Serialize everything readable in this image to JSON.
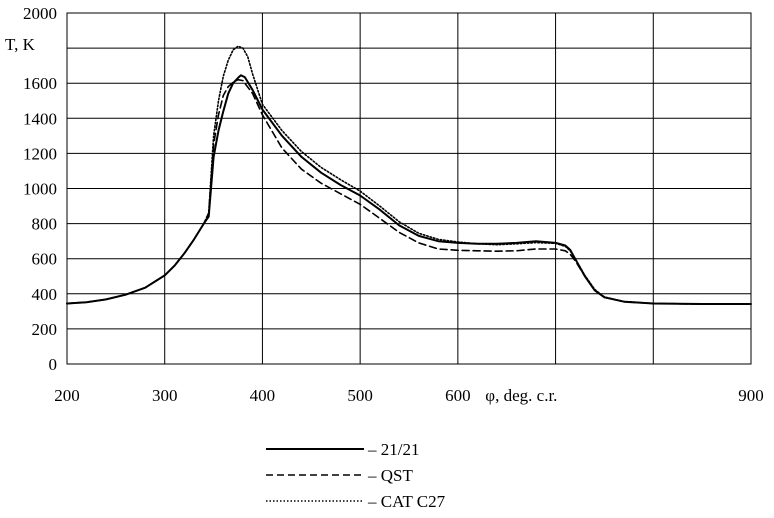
{
  "chart_data": {
    "type": "line",
    "xlabel": "φ, deg. c.r.",
    "ylabel": "T, K",
    "xlim": [
      200,
      900
    ],
    "ylim": [
      0,
      2000
    ],
    "x_ticks": [
      200,
      300,
      400,
      500,
      600,
      900
    ],
    "y_ticks": [
      0,
      200,
      400,
      600,
      800,
      1000,
      1200,
      1400,
      1600,
      2000
    ],
    "grid": true,
    "legend_position": "bottom",
    "series": [
      {
        "name": "– 21/21",
        "style": "solid",
        "points": [
          [
            200,
            345
          ],
          [
            220,
            352
          ],
          [
            240,
            368
          ],
          [
            260,
            395
          ],
          [
            280,
            435
          ],
          [
            300,
            505
          ],
          [
            310,
            560
          ],
          [
            320,
            630
          ],
          [
            330,
            710
          ],
          [
            340,
            800
          ],
          [
            345,
            840
          ],
          [
            350,
            1180
          ],
          [
            355,
            1330
          ],
          [
            360,
            1440
          ],
          [
            365,
            1540
          ],
          [
            370,
            1600
          ],
          [
            375,
            1630
          ],
          [
            378,
            1645
          ],
          [
            382,
            1635
          ],
          [
            390,
            1560
          ],
          [
            400,
            1450
          ],
          [
            420,
            1300
          ],
          [
            440,
            1180
          ],
          [
            460,
            1090
          ],
          [
            480,
            1020
          ],
          [
            500,
            960
          ],
          [
            520,
            880
          ],
          [
            540,
            790
          ],
          [
            560,
            730
          ],
          [
            580,
            700
          ],
          [
            600,
            690
          ],
          [
            620,
            685
          ],
          [
            640,
            685
          ],
          [
            660,
            690
          ],
          [
            680,
            700
          ],
          [
            700,
            690
          ],
          [
            710,
            675
          ],
          [
            715,
            650
          ],
          [
            720,
            600
          ],
          [
            730,
            500
          ],
          [
            740,
            420
          ],
          [
            750,
            380
          ],
          [
            770,
            355
          ],
          [
            800,
            345
          ],
          [
            850,
            342
          ],
          [
            900,
            342
          ]
        ]
      },
      {
        "name": "– QST",
        "style": "dashed",
        "points": [
          [
            200,
            345
          ],
          [
            220,
            352
          ],
          [
            240,
            368
          ],
          [
            260,
            395
          ],
          [
            280,
            435
          ],
          [
            300,
            505
          ],
          [
            310,
            560
          ],
          [
            320,
            630
          ],
          [
            330,
            710
          ],
          [
            340,
            800
          ],
          [
            345,
            860
          ],
          [
            350,
            1250
          ],
          [
            355,
            1420
          ],
          [
            360,
            1530
          ],
          [
            365,
            1580
          ],
          [
            370,
            1605
          ],
          [
            375,
            1620
          ],
          [
            380,
            1615
          ],
          [
            390,
            1540
          ],
          [
            400,
            1420
          ],
          [
            420,
            1230
          ],
          [
            440,
            1110
          ],
          [
            460,
            1030
          ],
          [
            480,
            970
          ],
          [
            500,
            910
          ],
          [
            520,
            830
          ],
          [
            540,
            750
          ],
          [
            560,
            690
          ],
          [
            580,
            655
          ],
          [
            600,
            648
          ],
          [
            620,
            645
          ],
          [
            640,
            643
          ],
          [
            660,
            645
          ],
          [
            680,
            655
          ],
          [
            700,
            655
          ],
          [
            710,
            645
          ],
          [
            715,
            625
          ],
          [
            720,
            590
          ],
          [
            730,
            500
          ],
          [
            740,
            420
          ],
          [
            750,
            380
          ],
          [
            770,
            355
          ],
          [
            800,
            345
          ],
          [
            850,
            342
          ],
          [
            900,
            342
          ]
        ]
      },
      {
        "name": "– CAT C27",
        "style": "dotted",
        "points": [
          [
            200,
            345
          ],
          [
            220,
            352
          ],
          [
            240,
            368
          ],
          [
            260,
            395
          ],
          [
            280,
            435
          ],
          [
            300,
            505
          ],
          [
            310,
            560
          ],
          [
            320,
            630
          ],
          [
            330,
            710
          ],
          [
            340,
            800
          ],
          [
            345,
            860
          ],
          [
            350,
            1300
          ],
          [
            355,
            1500
          ],
          [
            360,
            1640
          ],
          [
            365,
            1730
          ],
          [
            370,
            1790
          ],
          [
            375,
            1810
          ],
          [
            380,
            1800
          ],
          [
            385,
            1750
          ],
          [
            390,
            1650
          ],
          [
            400,
            1480
          ],
          [
            420,
            1330
          ],
          [
            440,
            1210
          ],
          [
            460,
            1120
          ],
          [
            480,
            1050
          ],
          [
            500,
            985
          ],
          [
            520,
            900
          ],
          [
            540,
            810
          ],
          [
            560,
            745
          ],
          [
            580,
            710
          ],
          [
            600,
            695
          ],
          [
            620,
            685
          ],
          [
            640,
            680
          ],
          [
            660,
            685
          ],
          [
            680,
            692
          ],
          [
            700,
            688
          ],
          [
            710,
            670
          ],
          [
            715,
            645
          ],
          [
            720,
            600
          ],
          [
            730,
            505
          ],
          [
            740,
            425
          ],
          [
            750,
            382
          ],
          [
            770,
            356
          ],
          [
            800,
            345
          ],
          [
            850,
            342
          ],
          [
            900,
            342
          ]
        ]
      }
    ]
  }
}
